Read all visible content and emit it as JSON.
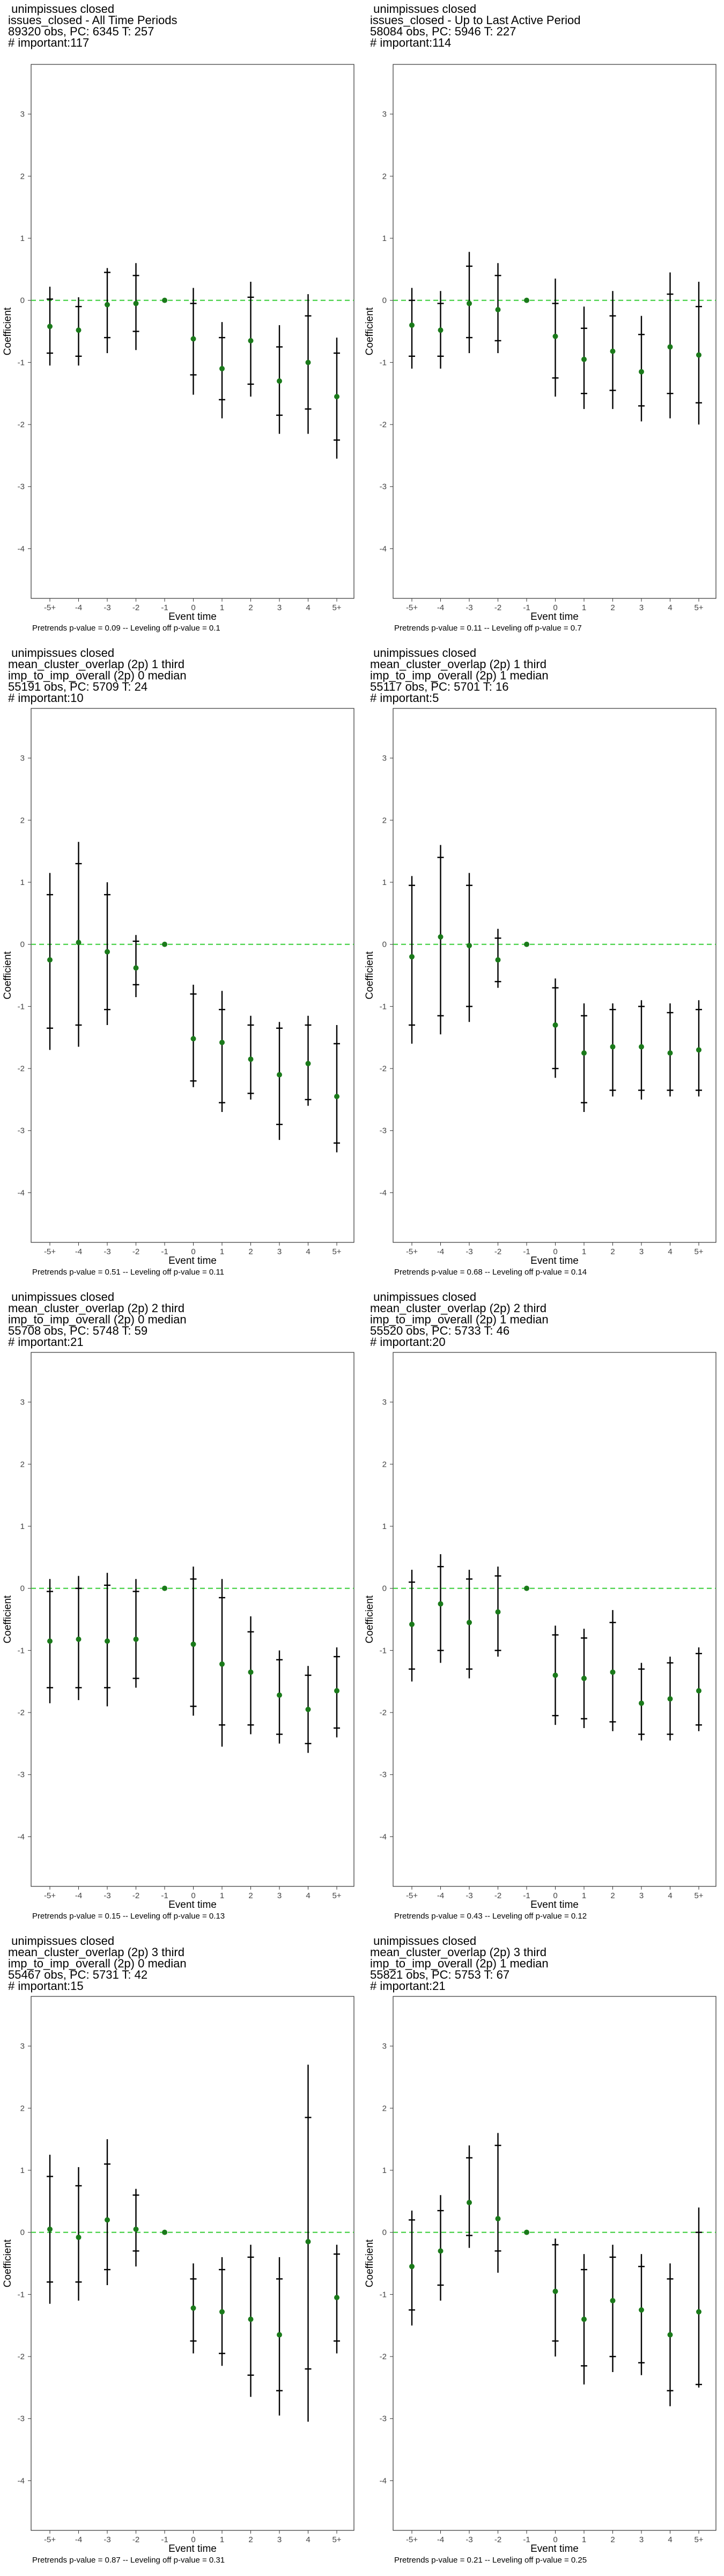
{
  "colors": {
    "point": "#1a7a1a",
    "reference_line": "#33cc33",
    "errorbar": "#000000",
    "frame": "#333333"
  },
  "shared_axes": {
    "xlabel": "Event time",
    "ylabel": "Coefficient",
    "x_ticks": [
      "-5+",
      "-4",
      "-3",
      "-2",
      "-1",
      "0",
      "1",
      "2",
      "3",
      "4",
      "5+"
    ],
    "y_ticks": [
      "-4",
      "-3",
      "-2",
      "-1",
      "0",
      "1",
      "2",
      "3"
    ]
  },
  "chart_data": [
    {
      "type": "scatter",
      "title_lines": [
        " unimpissues closed",
        "issues_closed - All Time Periods",
        "89320 obs, PC: 6345 T: 257",
        "# important:117"
      ],
      "footnote": "Pretrends p-value = 0.09 -- Leveling off p-value = 0.1",
      "x": [
        "-5+",
        "-4",
        "-3",
        "-2",
        "-1",
        "0",
        "1",
        "2",
        "3",
        "4",
        "5+"
      ],
      "ylim": [
        -4.8,
        3.8
      ],
      "reference_line": 0,
      "estimate": [
        -0.42,
        -0.48,
        -0.07,
        -0.05,
        0,
        -0.62,
        -1.1,
        -0.65,
        -1.3,
        -1.0,
        -1.55
      ],
      "ci_low": [
        -1.05,
        -1.05,
        -0.85,
        -0.8,
        0,
        -1.52,
        -1.9,
        -1.55,
        -2.15,
        -2.15,
        -2.55
      ],
      "ci_high": [
        0.22,
        0.05,
        0.52,
        0.6,
        0,
        0.2,
        -0.35,
        0.3,
        -0.4,
        0.1,
        -0.6
      ],
      "inner_low": [
        -0.85,
        -0.9,
        -0.6,
        -0.5,
        0,
        -1.2,
        -1.6,
        -1.35,
        -1.85,
        -1.75,
        -2.25
      ],
      "inner_high": [
        0.02,
        -0.1,
        0.45,
        0.4,
        0,
        -0.05,
        -0.6,
        0.05,
        -0.75,
        -0.25,
        -0.85
      ]
    },
    {
      "type": "scatter",
      "title_lines": [
        " unimpissues closed",
        "issues_closed - Up to Last Active Period",
        "58084 obs, PC: 5946 T: 227",
        "# important:114"
      ],
      "footnote": "Pretrends p-value = 0.11 -- Leveling off p-value = 0.7",
      "x": [
        "-5+",
        "-4",
        "-3",
        "-2",
        "-1",
        "0",
        "1",
        "2",
        "3",
        "4",
        "5+"
      ],
      "ylim": [
        -4.8,
        3.8
      ],
      "reference_line": 0,
      "estimate": [
        -0.4,
        -0.48,
        -0.05,
        -0.15,
        0,
        -0.58,
        -0.95,
        -0.82,
        -1.15,
        -0.75,
        -0.88
      ],
      "ci_low": [
        -1.1,
        -1.1,
        -0.85,
        -0.85,
        0,
        -1.55,
        -1.75,
        -1.75,
        -1.95,
        -1.9,
        -2.0
      ],
      "ci_high": [
        0.2,
        0.15,
        0.78,
        0.6,
        0,
        0.35,
        -0.1,
        0.15,
        -0.25,
        0.45,
        0.3
      ],
      "inner_low": [
        -0.9,
        -0.9,
        -0.6,
        -0.65,
        0,
        -1.25,
        -1.5,
        -1.45,
        -1.7,
        -1.5,
        -1.65
      ],
      "inner_high": [
        0.0,
        -0.05,
        0.55,
        0.4,
        0,
        -0.05,
        -0.45,
        -0.25,
        -0.55,
        0.1,
        -0.1
      ]
    },
    {
      "type": "scatter",
      "title_lines": [
        " unimpissues closed",
        "mean_cluster_overlap (2p) 1 third",
        "imp_to_imp_overall (2p) 0 median",
        "55191 obs, PC: 5709 T: 24",
        "# important:10"
      ],
      "footnote": "Pretrends p-value = 0.51 -- Leveling off p-value = 0.11",
      "x": [
        "-5+",
        "-4",
        "-3",
        "-2",
        "-1",
        "0",
        "1",
        "2",
        "3",
        "4",
        "5+"
      ],
      "ylim": [
        -4.8,
        3.8
      ],
      "reference_line": 0,
      "estimate": [
        -0.25,
        0.03,
        -0.12,
        -0.38,
        0,
        -1.52,
        -1.58,
        -1.85,
        -2.1,
        -1.92,
        -2.45
      ],
      "ci_low": [
        -1.7,
        -1.65,
        -1.3,
        -0.85,
        0,
        -2.3,
        -2.7,
        -2.5,
        -3.15,
        -2.6,
        -3.35
      ],
      "ci_high": [
        1.15,
        1.65,
        1.0,
        0.15,
        0,
        -0.65,
        -0.75,
        -1.15,
        -1.25,
        -1.15,
        -1.3
      ],
      "inner_low": [
        -1.35,
        -1.3,
        -1.05,
        -0.65,
        0,
        -2.2,
        -2.55,
        -2.4,
        -2.9,
        -2.5,
        -3.2
      ],
      "inner_high": [
        0.8,
        1.3,
        0.8,
        0.05,
        0,
        -0.8,
        -1.05,
        -1.3,
        -1.35,
        -1.3,
        -1.6
      ]
    },
    {
      "type": "scatter",
      "title_lines": [
        " unimpissues closed",
        "mean_cluster_overlap (2p) 1 third",
        "imp_to_imp_overall (2p) 1 median",
        "55117 obs, PC: 5701 T: 16",
        "# important:5"
      ],
      "footnote": "Pretrends p-value = 0.68 -- Leveling off p-value = 0.14",
      "x": [
        "-5+",
        "-4",
        "-3",
        "-2",
        "-1",
        "0",
        "1",
        "2",
        "3",
        "4",
        "5+"
      ],
      "ylim": [
        -4.8,
        3.8
      ],
      "reference_line": 0,
      "estimate": [
        -0.2,
        0.12,
        -0.02,
        -0.25,
        0,
        -1.3,
        -1.75,
        -1.65,
        -1.65,
        -1.75,
        -1.7
      ],
      "ci_low": [
        -1.6,
        -1.45,
        -1.25,
        -0.7,
        0,
        -2.15,
        -2.7,
        -2.45,
        -2.5,
        -2.45,
        -2.45
      ],
      "ci_high": [
        1.1,
        1.6,
        1.15,
        0.25,
        0,
        -0.55,
        -0.95,
        -0.95,
        -0.9,
        -0.95,
        -0.9
      ],
      "inner_low": [
        -1.3,
        -1.15,
        -1.0,
        -0.6,
        0,
        -2.0,
        -2.55,
        -2.35,
        -2.35,
        -2.35,
        -2.35
      ],
      "inner_high": [
        0.95,
        1.4,
        0.95,
        0.1,
        0,
        -0.7,
        -1.15,
        -1.05,
        -1.0,
        -1.1,
        -1.05
      ]
    },
    {
      "type": "scatter",
      "title_lines": [
        " unimpissues closed",
        "mean_cluster_overlap (2p) 2 third",
        "imp_to_imp_overall (2p) 0 median",
        "55708 obs, PC: 5748 T: 59",
        "# important:21"
      ],
      "footnote": "Pretrends p-value = 0.15 -- Leveling off p-value = 0.13",
      "x": [
        "-5+",
        "-4",
        "-3",
        "-2",
        "-1",
        "0",
        "1",
        "2",
        "3",
        "4",
        "5+"
      ],
      "ylim": [
        -4.8,
        3.8
      ],
      "reference_line": 0,
      "estimate": [
        -0.85,
        -0.82,
        -0.85,
        -0.82,
        0,
        -0.9,
        -1.22,
        -1.35,
        -1.72,
        -1.95,
        -1.65
      ],
      "ci_low": [
        -1.85,
        -1.8,
        -1.9,
        -1.6,
        0,
        -2.05,
        -2.55,
        -2.35,
        -2.5,
        -2.65,
        -2.4
      ],
      "ci_high": [
        0.15,
        0.2,
        0.25,
        0.15,
        0,
        0.35,
        0.15,
        -0.45,
        -1.0,
        -1.25,
        -0.95
      ],
      "inner_low": [
        -1.6,
        -1.6,
        -1.6,
        -1.45,
        0,
        -1.9,
        -2.2,
        -2.2,
        -2.35,
        -2.5,
        -2.25
      ],
      "inner_high": [
        -0.05,
        0.0,
        0.05,
        -0.05,
        0,
        0.15,
        -0.15,
        -0.7,
        -1.15,
        -1.4,
        -1.1
      ]
    },
    {
      "type": "scatter",
      "title_lines": [
        " unimpissues closed",
        "mean_cluster_overlap (2p) 2 third",
        "imp_to_imp_overall (2p) 1 median",
        "55520 obs, PC: 5733 T: 46",
        "# important:20"
      ],
      "footnote": "Pretrends p-value = 0.43 -- Leveling off p-value = 0.12",
      "x": [
        "-5+",
        "-4",
        "-3",
        "-2",
        "-1",
        "0",
        "1",
        "2",
        "3",
        "4",
        "5+"
      ],
      "ylim": [
        -4.8,
        3.8
      ],
      "reference_line": 0,
      "estimate": [
        -0.58,
        -0.25,
        -0.55,
        -0.38,
        0,
        -1.4,
        -1.45,
        -1.35,
        -1.85,
        -1.78,
        -1.65
      ],
      "ci_low": [
        -1.5,
        -1.2,
        -1.45,
        -1.1,
        0,
        -2.2,
        -2.25,
        -2.3,
        -2.45,
        -2.45,
        -2.3
      ],
      "ci_high": [
        0.3,
        0.55,
        0.3,
        0.35,
        0,
        -0.6,
        -0.65,
        -0.35,
        -1.2,
        -1.1,
        -0.95
      ],
      "inner_low": [
        -1.3,
        -1.0,
        -1.3,
        -1.0,
        0,
        -2.05,
        -2.1,
        -2.15,
        -2.35,
        -2.35,
        -2.2
      ],
      "inner_high": [
        0.1,
        0.35,
        0.15,
        0.2,
        0,
        -0.75,
        -0.8,
        -0.55,
        -1.3,
        -1.2,
        -1.05
      ]
    },
    {
      "type": "scatter",
      "title_lines": [
        " unimpissues closed",
        "mean_cluster_overlap (2p) 3 third",
        "imp_to_imp_overall (2p) 0 median",
        "55467 obs, PC: 5731 T: 42",
        "# important:15"
      ],
      "footnote": "Pretrends p-value = 0.87 -- Leveling off p-value = 0.31",
      "x": [
        "-5+",
        "-4",
        "-3",
        "-2",
        "-1",
        "0",
        "1",
        "2",
        "3",
        "4",
        "5+"
      ],
      "ylim": [
        -4.8,
        3.8
      ],
      "reference_line": 0,
      "estimate": [
        0.05,
        -0.08,
        0.2,
        0.05,
        0,
        -1.22,
        -1.28,
        -1.4,
        -1.65,
        -0.15,
        -1.05
      ],
      "ci_low": [
        -1.15,
        -1.1,
        -0.85,
        -0.55,
        0,
        -1.95,
        -2.15,
        -2.65,
        -2.95,
        -3.05,
        -1.95
      ],
      "ci_high": [
        1.25,
        1.05,
        1.5,
        0.7,
        0,
        -0.5,
        -0.4,
        -0.2,
        -0.4,
        2.7,
        -0.2
      ],
      "inner_low": [
        -0.8,
        -0.8,
        -0.6,
        -0.3,
        0,
        -1.75,
        -1.95,
        -2.3,
        -2.55,
        -2.2,
        -1.75
      ],
      "inner_high": [
        0.9,
        0.75,
        1.1,
        0.6,
        0,
        -0.75,
        -0.6,
        -0.4,
        -0.75,
        1.85,
        -0.35
      ]
    },
    {
      "type": "scatter",
      "title_lines": [
        " unimpissues closed",
        "mean_cluster_overlap (2p) 3 third",
        "imp_to_imp_overall (2p) 1 median",
        "55821 obs, PC: 5753 T: 67",
        "# important:21"
      ],
      "footnote": "Pretrends p-value = 0.21 -- Leveling off p-value = 0.25",
      "x": [
        "-5+",
        "-4",
        "-3",
        "-2",
        "-1",
        "0",
        "1",
        "2",
        "3",
        "4",
        "5+"
      ],
      "ylim": [
        -4.8,
        3.8
      ],
      "reference_line": 0,
      "estimate": [
        -0.55,
        -0.3,
        0.48,
        0.22,
        0,
        -0.95,
        -1.4,
        -1.1,
        -1.25,
        -1.65,
        -1.28
      ],
      "ci_low": [
        -1.5,
        -1.1,
        -0.25,
        -0.65,
        0,
        -2.0,
        -2.45,
        -2.25,
        -2.3,
        -2.8,
        -2.5
      ],
      "ci_high": [
        0.35,
        0.6,
        1.4,
        1.6,
        0,
        -0.1,
        -0.35,
        -0.2,
        -0.35,
        -0.5,
        0.4
      ],
      "inner_low": [
        -1.25,
        -0.85,
        -0.05,
        -0.3,
        0,
        -1.75,
        -2.15,
        -2.0,
        -2.1,
        -2.55,
        -2.45
      ],
      "inner_high": [
        0.2,
        0.35,
        1.2,
        1.4,
        0,
        -0.2,
        -0.6,
        -0.4,
        -0.55,
        -0.75,
        0.0
      ]
    }
  ]
}
